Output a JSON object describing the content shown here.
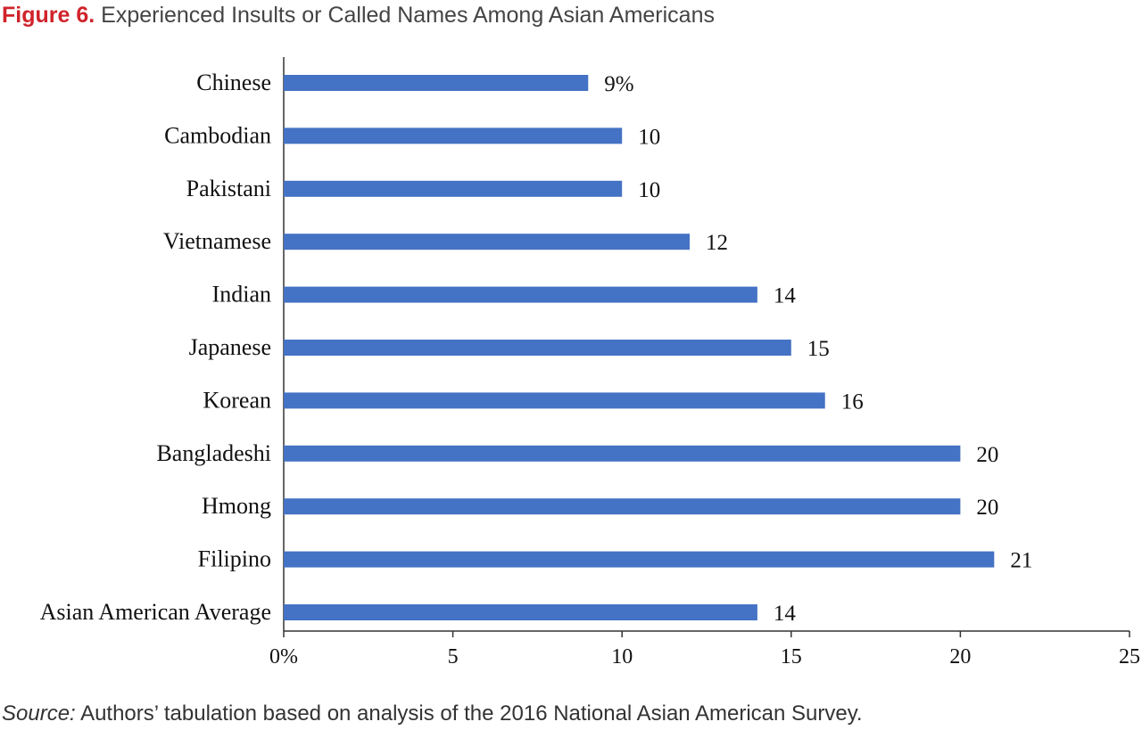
{
  "figure_label": "Figure 6.",
  "source_label": "Source:",
  "source_text": "Authors’ tabulation based on analysis of the 2016 National Asian American Survey.",
  "chart_data": {
    "type": "bar",
    "orientation": "horizontal",
    "title": "Experienced Insults or Called Names Among Asian Americans",
    "categories": [
      "Chinese",
      "Cambodian",
      "Pakistani",
      "Vietnamese",
      "Indian",
      "Japanese",
      "Korean",
      "Bangladeshi",
      "Hmong",
      "Filipino",
      "Asian American Average"
    ],
    "values": [
      9,
      10,
      10,
      12,
      14,
      15,
      16,
      20,
      20,
      21,
      14
    ],
    "data_labels": [
      "9%",
      "10",
      "10",
      "12",
      "14",
      "15",
      "16",
      "20",
      "20",
      "21",
      "14"
    ],
    "xlim": [
      0,
      25
    ],
    "xticks": [
      0,
      5,
      10,
      15,
      20,
      25
    ],
    "xtick_labels": [
      "0%",
      "5",
      "10",
      "15",
      "20",
      "25"
    ],
    "grid": false,
    "bar_color": "#4472c4"
  }
}
